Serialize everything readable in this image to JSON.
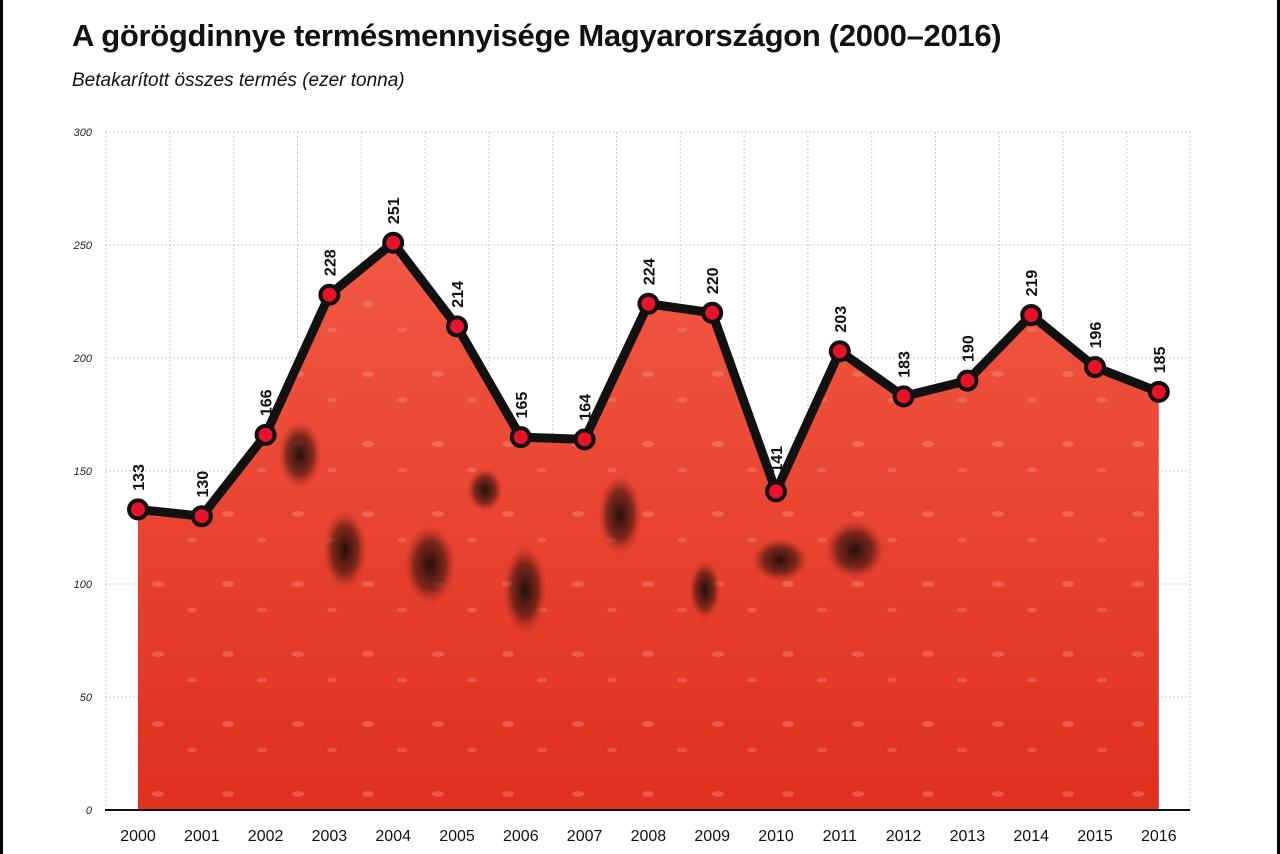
{
  "header": {
    "title": "A görögdinnye termésmennyisége Magyarországon (2000–2016)",
    "subtitle": "Betakarított összes termés (ezer tonna)"
  },
  "colors": {
    "fill_light": "#f2553f",
    "fill_dark": "#e0301f",
    "line": "#111111",
    "marker": "#e8132a",
    "grid": "#cccccc"
  },
  "chart_data": {
    "type": "area",
    "title": "A görögdinnye termésmennyisége Magyarországon (2000–2016)",
    "subtitle": "Betakarított összes termés (ezer tonna)",
    "xlabel": "",
    "ylabel": "",
    "categories": [
      "2000",
      "2001",
      "2002",
      "2003",
      "2004",
      "2005",
      "2006",
      "2007",
      "2008",
      "2009",
      "2010",
      "2011",
      "2012",
      "2013",
      "2014",
      "2015",
      "2016"
    ],
    "values": [
      133,
      130,
      166,
      228,
      251,
      214,
      165,
      164,
      224,
      220,
      141,
      203,
      183,
      190,
      219,
      196,
      185
    ],
    "ylim": [
      0,
      300
    ],
    "yticks": [
      "0",
      "50",
      "100",
      "150",
      "200",
      "250",
      "300"
    ],
    "grid": true,
    "grid_style": "dotted",
    "legend": "none",
    "fill_texture": "watermelon flesh"
  }
}
